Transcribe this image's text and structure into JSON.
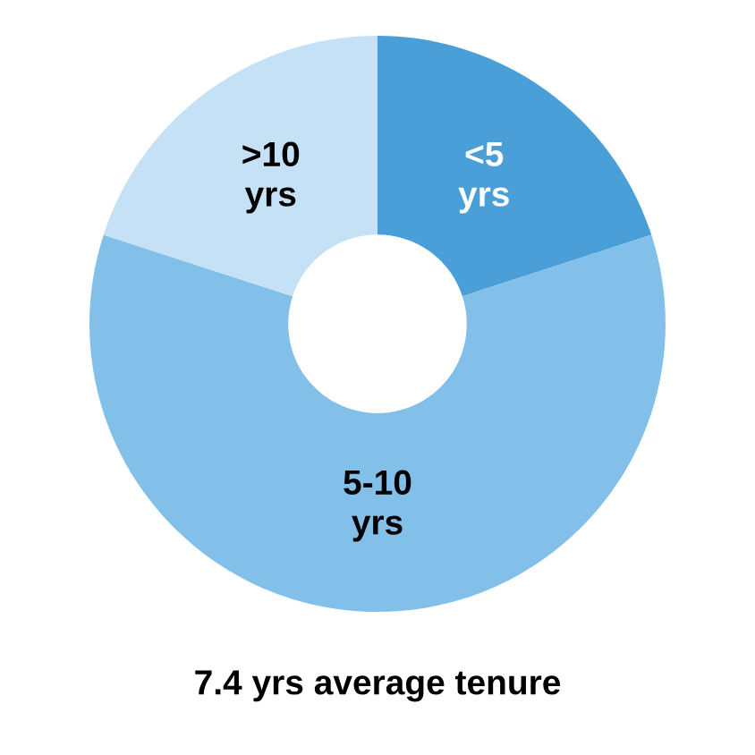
{
  "chart_data": {
    "type": "donut",
    "title": "7.4 yrs average tenure",
    "categories": [
      "<5\nyrs",
      "5-10\nyrs",
      ">10\nyrs"
    ],
    "values": [
      20,
      60,
      20
    ],
    "colors": [
      "#4a9fd8",
      "#82c0ea",
      "#c5e1f5"
    ]
  }
}
